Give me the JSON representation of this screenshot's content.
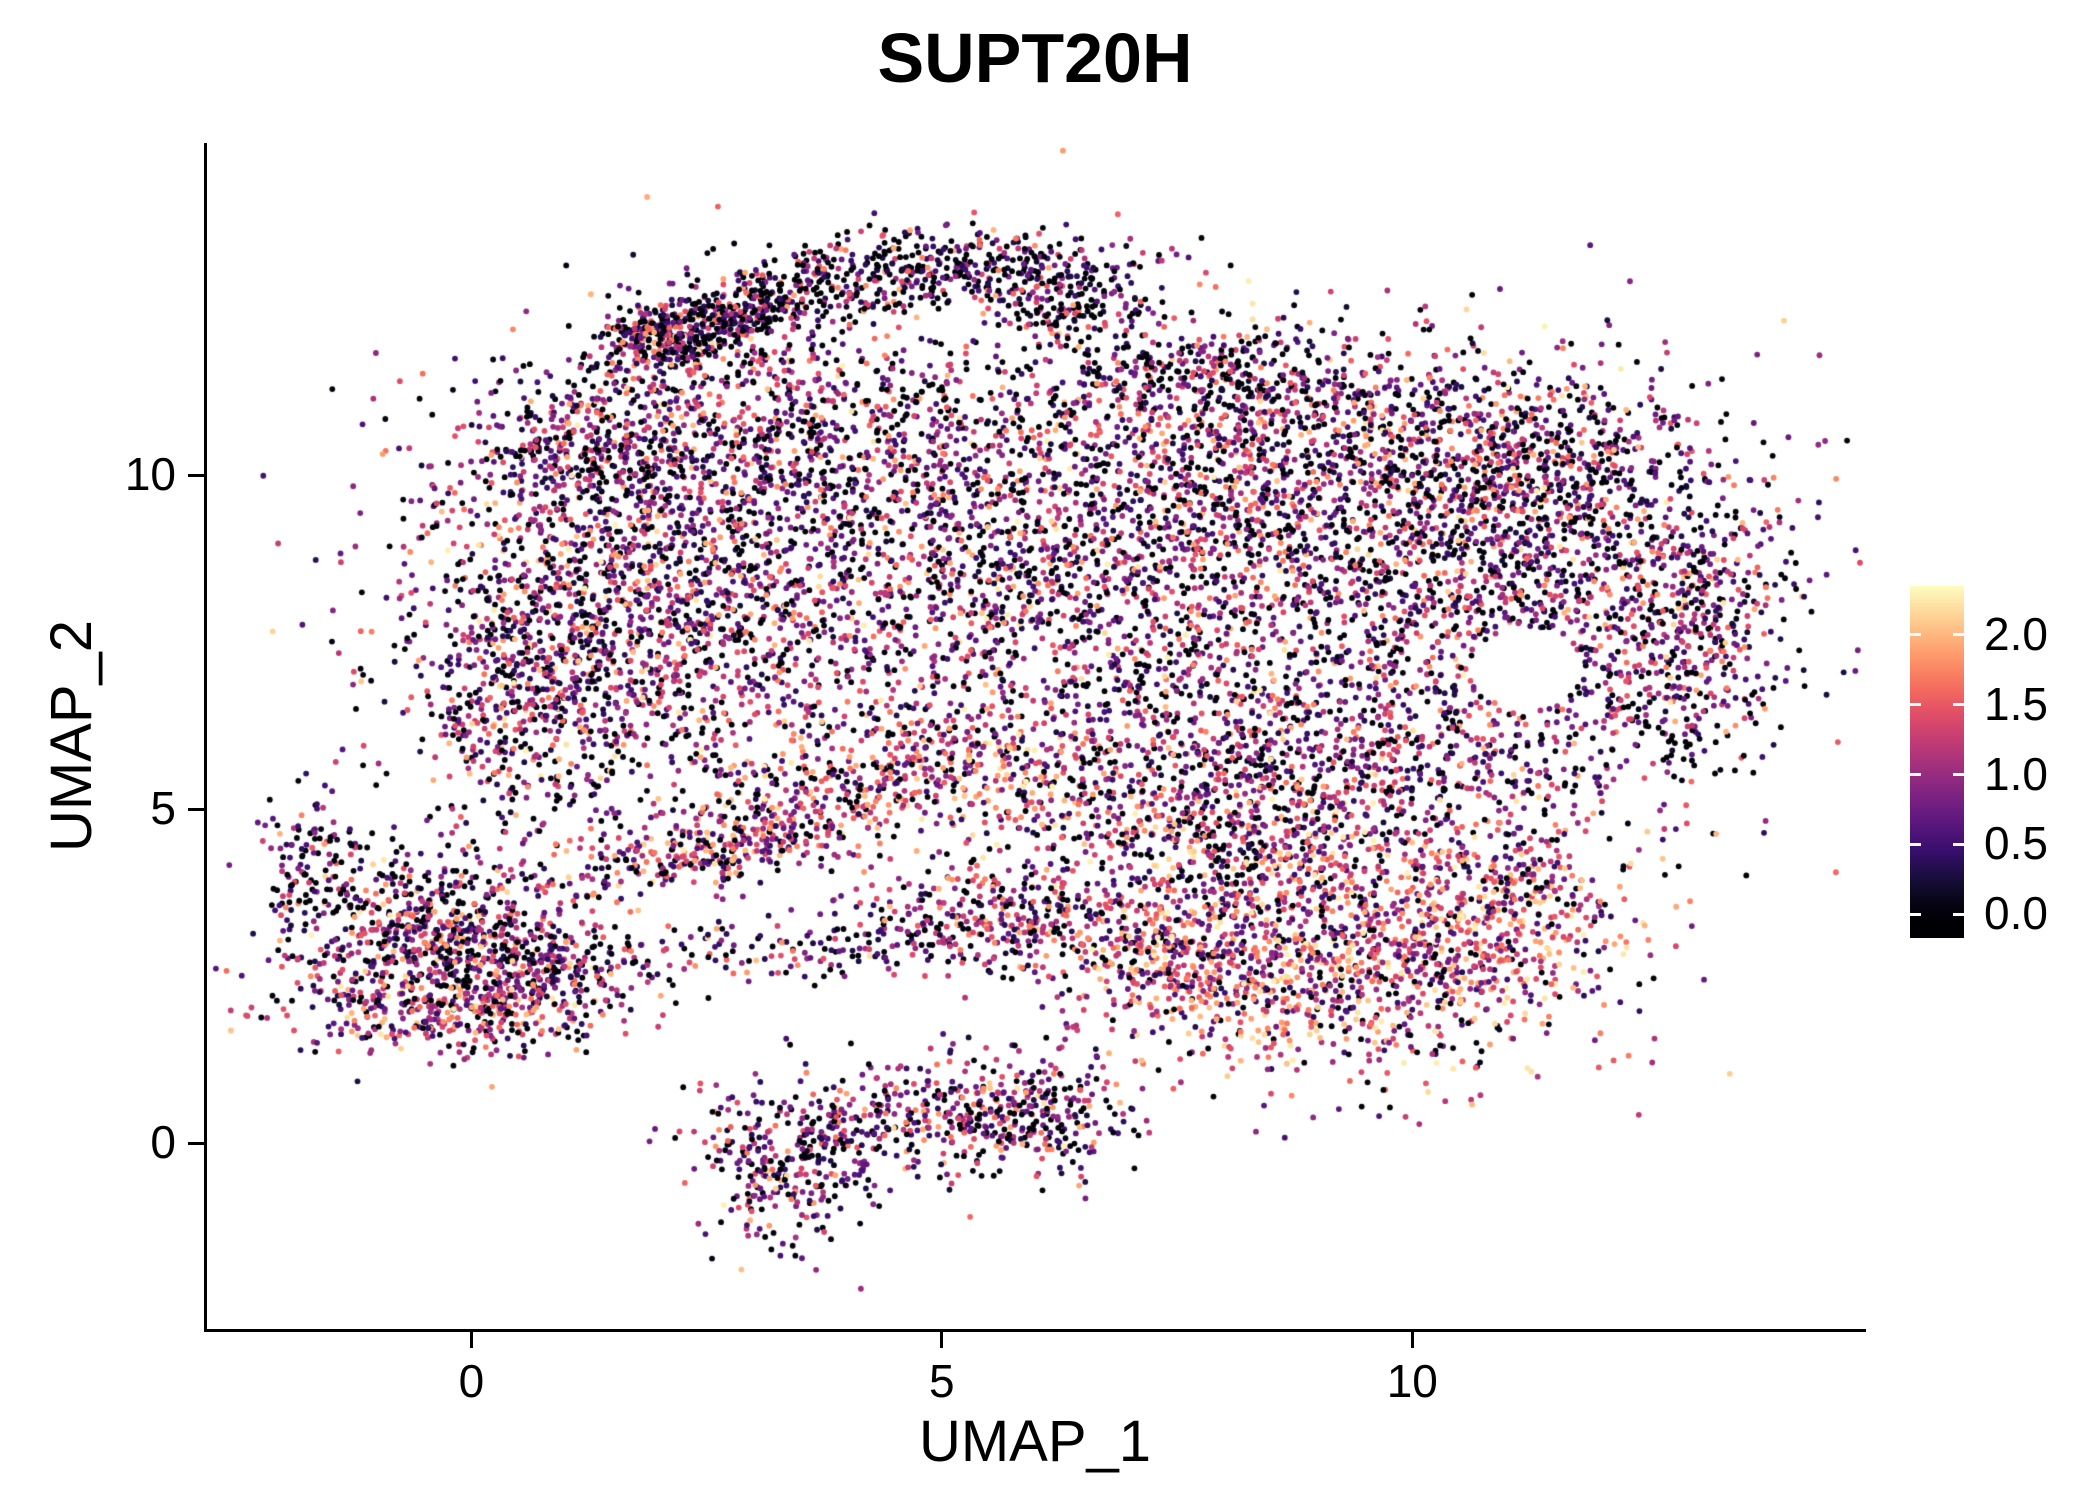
{
  "chart_data": {
    "type": "scatter",
    "title": "SUPT20H",
    "xlabel": "UMAP_1",
    "ylabel": "UMAP_2",
    "x_range": [
      -2.81,
      14.79
    ],
    "y_range": [
      -2.78,
      14.97
    ],
    "x_ticks": [
      {
        "value": 0,
        "label": "0"
      },
      {
        "value": 5,
        "label": "5"
      },
      {
        "value": 10,
        "label": "10"
      }
    ],
    "y_ticks": [
      {
        "value": 0,
        "label": "0"
      },
      {
        "value": 5,
        "label": "5"
      },
      {
        "value": 10,
        "label": "10"
      }
    ],
    "grid": false,
    "legend_position": "right",
    "colorbar": {
      "ticks": [
        {
          "value": 2.0,
          "label": "2.0"
        },
        {
          "value": 1.5,
          "label": "1.5"
        },
        {
          "value": 1.0,
          "label": "1.0"
        },
        {
          "value": 0.5,
          "label": "0.5"
        },
        {
          "value": 0.0,
          "label": "0.0"
        }
      ],
      "bar_vmin": -0.17,
      "bar_vmax": 2.35
    },
    "color_scale": {
      "name": "magma",
      "value_max": 2.35,
      "stops": [
        [
          0.0,
          "#000004"
        ],
        [
          0.1,
          "#140e36"
        ],
        [
          0.2,
          "#3b0f70"
        ],
        [
          0.3,
          "#641a80"
        ],
        [
          0.4,
          "#8c2981"
        ],
        [
          0.5,
          "#b73779"
        ],
        [
          0.6,
          "#de4968"
        ],
        [
          0.7,
          "#f7705c"
        ],
        [
          0.8,
          "#fe9f6d"
        ],
        [
          0.9,
          "#fece91"
        ],
        [
          1.0,
          "#fcfdbf"
        ]
      ]
    },
    "point_radius": 2.9,
    "seed": 42,
    "expr_profiles": {
      "mixed": [
        [
          0.28,
          0.0,
          0.07
        ],
        [
          0.3,
          0.2,
          0.85
        ],
        [
          0.27,
          0.85,
          1.5
        ],
        [
          0.12,
          1.5,
          2.0
        ],
        [
          0.03,
          2.0,
          2.3
        ]
      ],
      "dark": [
        [
          0.45,
          0.0,
          0.06
        ],
        [
          0.3,
          0.15,
          0.85
        ],
        [
          0.18,
          0.85,
          1.5
        ],
        [
          0.07,
          1.5,
          2.0
        ]
      ],
      "midhigh": [
        [
          0.2,
          0.0,
          0.07
        ],
        [
          0.28,
          0.3,
          1.0
        ],
        [
          0.3,
          1.0,
          1.6
        ],
        [
          0.16,
          1.6,
          2.05
        ],
        [
          0.06,
          2.05,
          2.3
        ]
      ],
      "high": [
        [
          0.14,
          0.0,
          0.07
        ],
        [
          0.24,
          0.3,
          1.0
        ],
        [
          0.3,
          1.0,
          1.6
        ],
        [
          0.2,
          1.6,
          2.05
        ],
        [
          0.12,
          2.05,
          2.3
        ]
      ]
    },
    "clusters": [
      {
        "name": "main-core",
        "cx": 6.2,
        "cy": 8.6,
        "sx": 2.5,
        "sy": 1.55,
        "rot": 0,
        "n": 2400,
        "expr": "mixed"
      },
      {
        "name": "main-left",
        "cx": 1.6,
        "cy": 8.2,
        "sx": 1.15,
        "sy": 1.5,
        "rot": 0,
        "n": 1300,
        "expr": "mixed"
      },
      {
        "name": "main-left-low",
        "cx": 0.6,
        "cy": 6.6,
        "sx": 0.7,
        "sy": 0.8,
        "rot": 0,
        "n": 400,
        "expr": "mixed"
      },
      {
        "name": "main-topleft",
        "cx": 3.2,
        "cy": 10.7,
        "sx": 1.25,
        "sy": 0.85,
        "rot": 0,
        "n": 650,
        "expr": "mixed"
      },
      {
        "name": "topleft-high",
        "cx": 1.2,
        "cy": 10.4,
        "sx": 0.65,
        "sy": 0.55,
        "rot": 0,
        "n": 260,
        "expr": "mixed"
      },
      {
        "name": "top-arc-start",
        "cx": 2.0,
        "cy": 12.1,
        "sx": 0.3,
        "sy": 0.25,
        "rot": 0,
        "n": 190,
        "expr": "mixed"
      },
      {
        "name": "top-arc-left",
        "cx": 2.7,
        "cy": 12.35,
        "sx": 0.75,
        "sy": 0.3,
        "rot": 25,
        "n": 420,
        "expr": "dark"
      },
      {
        "name": "top-arc-right",
        "cx": 4.9,
        "cy": 13.05,
        "sx": 1.05,
        "sy": 0.3,
        "rot": 4,
        "n": 430,
        "expr": "dark"
      },
      {
        "name": "top-arc-tail",
        "cx": 6.3,
        "cy": 12.6,
        "sx": 0.4,
        "sy": 0.35,
        "rot": -35,
        "n": 170,
        "expr": "dark"
      },
      {
        "name": "top-mid-band",
        "cx": 7.8,
        "cy": 11.5,
        "sx": 0.85,
        "sy": 0.4,
        "rot": 0,
        "n": 220,
        "expr": "dark"
      },
      {
        "name": "top-right-band",
        "cx": 8.8,
        "cy": 10.7,
        "sx": 1.7,
        "sy": 0.8,
        "rot": 0,
        "n": 850,
        "expr": "mixed"
      },
      {
        "name": "top-right-edge",
        "cx": 11.2,
        "cy": 10.3,
        "sx": 0.85,
        "sy": 0.65,
        "rot": 0,
        "n": 330,
        "expr": "mixed"
      },
      {
        "name": "right-lobe",
        "cx": 11.2,
        "cy": 8.6,
        "sx": 1.45,
        "sy": 1.25,
        "rot": 0,
        "n": 1250,
        "expr": "mixed"
      },
      {
        "name": "right-edge",
        "cx": 13.0,
        "cy": 7.3,
        "sx": 0.45,
        "sy": 1.0,
        "rot": 0,
        "n": 280,
        "expr": "mixed"
      },
      {
        "name": "mid-bottom-band",
        "cx": 5.3,
        "cy": 5.5,
        "sx": 1.6,
        "sy": 0.6,
        "rot": 0,
        "n": 600,
        "expr": "midhigh"
      },
      {
        "name": "main-bottom-right",
        "cx": 9.3,
        "cy": 5.7,
        "sx": 1.7,
        "sy": 0.8,
        "rot": 0,
        "n": 850,
        "expr": "mixed"
      },
      {
        "name": "neck",
        "cx": 8.2,
        "cy": 4.4,
        "sx": 1.0,
        "sy": 0.5,
        "rot": 0,
        "n": 280,
        "expr": "mixed"
      },
      {
        "name": "lowerleft-core",
        "cx": -0.4,
        "cy": 3.0,
        "sx": 0.85,
        "sy": 0.72,
        "rot": 0,
        "n": 850,
        "expr": "mixed"
      },
      {
        "name": "lowerleft-bottom",
        "cx": -0.3,
        "cy": 1.9,
        "sx": 0.75,
        "sy": 0.3,
        "rot": 0,
        "n": 240,
        "expr": "midhigh"
      },
      {
        "name": "lowerleft-right",
        "cx": 0.9,
        "cy": 2.5,
        "sx": 0.5,
        "sy": 0.4,
        "rot": 0,
        "n": 190,
        "expr": "mixed"
      },
      {
        "name": "lowerleft-tail",
        "cx": -1.75,
        "cy": 4.35,
        "sx": 0.25,
        "sy": 0.45,
        "rot": 0,
        "n": 100,
        "expr": "dark"
      },
      {
        "name": "diag-strip",
        "cx": 2.7,
        "cy": 4.5,
        "sx": 0.95,
        "sy": 0.3,
        "rot": 18,
        "n": 380,
        "expr": "midhigh"
      },
      {
        "name": "thin-strip",
        "cx": 3.4,
        "cy": 2.9,
        "sx": 1.2,
        "sy": 0.25,
        "rot": 0,
        "n": 150,
        "expr": "mixed"
      },
      {
        "name": "mid-cluster",
        "cx": 5.5,
        "cy": 3.4,
        "sx": 0.65,
        "sy": 0.42,
        "rot": 0,
        "n": 280,
        "expr": "mixed"
      },
      {
        "name": "lowerright-core",
        "cx": 9.3,
        "cy": 2.9,
        "sx": 1.45,
        "sy": 0.95,
        "rot": 0,
        "n": 1400,
        "expr": "high"
      },
      {
        "name": "lowerright-left",
        "cx": 7.3,
        "cy": 2.8,
        "sx": 0.6,
        "sy": 0.6,
        "rot": 0,
        "n": 280,
        "expr": "midhigh"
      },
      {
        "name": "lowerright-edge",
        "cx": 11.0,
        "cy": 3.7,
        "sx": 0.5,
        "sy": 0.75,
        "rot": 0,
        "n": 220,
        "expr": "high"
      },
      {
        "name": "bottom-main",
        "cx": 4.6,
        "cy": 0.35,
        "sx": 1.0,
        "sy": 0.45,
        "rot": 8,
        "n": 400,
        "expr": "mixed"
      },
      {
        "name": "bottom-right",
        "cx": 6.0,
        "cy": 0.45,
        "sx": 0.5,
        "sy": 0.45,
        "rot": 0,
        "n": 210,
        "expr": "mixed"
      },
      {
        "name": "bottom-tail",
        "cx": 3.3,
        "cy": -0.45,
        "sx": 0.4,
        "sy": 0.55,
        "rot": 0,
        "n": 210,
        "expr": "mixed"
      },
      {
        "name": "main-noise",
        "cx": 6.5,
        "cy": 8.8,
        "sx": 3.6,
        "sy": 2.0,
        "rot": 0,
        "n": 500,
        "expr": "mixed"
      }
    ],
    "exclusions": [
      {
        "cx": 11.2,
        "cy": 7.1,
        "r": 0.6
      }
    ]
  }
}
